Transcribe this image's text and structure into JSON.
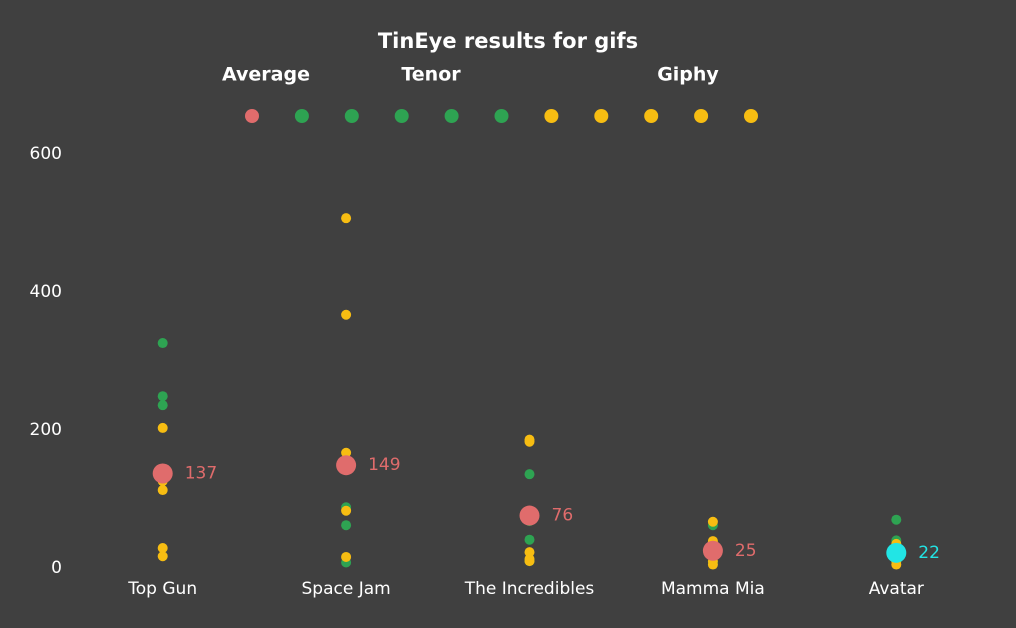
{
  "chart_data": {
    "type": "strip",
    "title": "TinEye results for gifs",
    "categories": [
      "Top Gun",
      "Space Jam",
      "The Incredibles",
      "Mamma Mia",
      "Avatar"
    ],
    "ylim": [
      0,
      600
    ],
    "yticks": [
      0,
      200,
      400,
      600
    ],
    "grid": false,
    "series": [
      {
        "name": "Average",
        "color": "#e06c6c",
        "colors": [
          "#e06c6c",
          "#e06c6c",
          "#e06c6c",
          "#e06c6c",
          "#22e5e5"
        ],
        "x": [
          "Top Gun",
          "Space Jam",
          "The Incredibles",
          "Mamma Mia",
          "Avatar"
        ],
        "values": [
          137,
          149,
          76,
          25,
          22
        ]
      },
      {
        "name": "Tenor",
        "color": "#2ea352",
        "x": [
          "Top Gun",
          "Top Gun",
          "Top Gun",
          "Space Jam",
          "Space Jam",
          "Space Jam",
          "The Incredibles",
          "The Incredibles",
          "The Incredibles",
          "The Incredibles",
          "Mamma Mia",
          "Mamma Mia",
          "Mamma Mia",
          "Avatar",
          "Avatar",
          "Avatar"
        ],
        "values": [
          326,
          249,
          236,
          88,
          62,
          8,
          136,
          68,
          41,
          10,
          62,
          20,
          8,
          70,
          40,
          10
        ]
      },
      {
        "name": "Giphy",
        "color": "#f7bd12",
        "x": [
          "Top Gun",
          "Top Gun",
          "Top Gun",
          "Top Gun",
          "Top Gun",
          "Space Jam",
          "Space Jam",
          "Space Jam",
          "Space Jam",
          "Space Jam",
          "The Incredibles",
          "The Incredibles",
          "The Incredibles",
          "The Incredibles",
          "The Incredibles",
          "Mamma Mia",
          "Mamma Mia",
          "Mamma Mia",
          "Mamma Mia",
          "Mamma Mia",
          "Avatar",
          "Avatar",
          "Avatar",
          "Avatar"
        ],
        "values": [
          203,
          126,
          113,
          29,
          17,
          507,
          367,
          167,
          83,
          16,
          186,
          183,
          23,
          13,
          10,
          67,
          39,
          20,
          10,
          5,
          35,
          30,
          10,
          5
        ]
      }
    ]
  }
}
